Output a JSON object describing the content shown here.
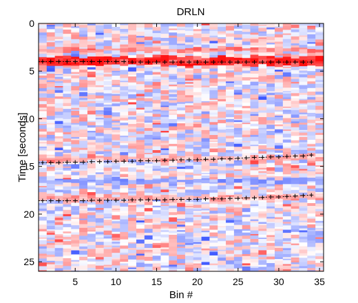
{
  "chart_data": {
    "type": "heatmap",
    "title": "DRLN",
    "xlabel": "Bin #",
    "ylabel": "Time [seconds]",
    "xlim": [
      0.5,
      35.5
    ],
    "ylim": [
      26,
      0
    ],
    "y_reversed": true,
    "x_ticks": [
      5,
      10,
      15,
      20,
      25,
      30,
      35
    ],
    "y_ticks": [
      0,
      5,
      10,
      15,
      20,
      25
    ],
    "n_bins": 35,
    "colormap": [
      "#1030ff",
      "#ffffff",
      "#ff1010"
    ],
    "color_range": [
      -1,
      1
    ],
    "picked_arrivals": [
      {
        "marker": "+",
        "times": [
          4.0,
          4.0,
          4.0,
          4.0,
          4.0,
          4.0,
          4.0,
          4.0,
          4.0,
          4.0,
          4.0,
          4.05,
          4.05,
          4.05,
          4.05,
          4.05,
          4.05,
          4.05,
          4.05,
          4.05,
          4.05,
          4.05,
          4.05,
          4.05,
          4.05,
          4.05,
          4.05,
          4.05,
          4.05,
          4.05,
          4.05,
          4.05,
          4.05,
          4.05
        ]
      },
      {
        "marker": "+",
        "times": [
          14.6,
          14.6,
          14.6,
          14.55,
          14.55,
          14.55,
          14.5,
          14.5,
          14.5,
          14.45,
          14.45,
          14.45,
          14.4,
          14.4,
          14.4,
          14.35,
          14.35,
          14.3,
          14.3,
          14.3,
          14.25,
          14.25,
          14.2,
          14.2,
          14.15,
          14.1,
          14.05,
          14.05,
          14.0,
          14.0,
          13.95,
          13.9,
          13.9,
          13.8
        ]
      },
      {
        "marker": "+",
        "times": [
          18.6,
          18.6,
          18.6,
          18.6,
          18.6,
          18.6,
          18.55,
          18.55,
          18.55,
          18.55,
          18.55,
          18.5,
          18.5,
          18.5,
          18.5,
          18.5,
          18.45,
          18.45,
          18.45,
          18.45,
          18.4,
          18.4,
          18.4,
          18.35,
          18.35,
          18.3,
          18.3,
          18.25,
          18.2,
          18.2,
          18.15,
          18.1,
          18.05,
          18.0
        ]
      }
    ],
    "coherent_bands": [
      {
        "t_start": 3.5,
        "t_end": 4.4,
        "amplitude": 0.95
      },
      {
        "t_start": 2.6,
        "t_end": 3.0,
        "amplitude": 0.5
      },
      {
        "t_start": 13.9,
        "t_end": 14.4,
        "amplitude": 0.35
      },
      {
        "t_start": 18.1,
        "t_end": 18.5,
        "amplitude": 0.4
      },
      {
        "t_start": 16.3,
        "t_end": 16.8,
        "amplitude": -0.45
      }
    ]
  }
}
